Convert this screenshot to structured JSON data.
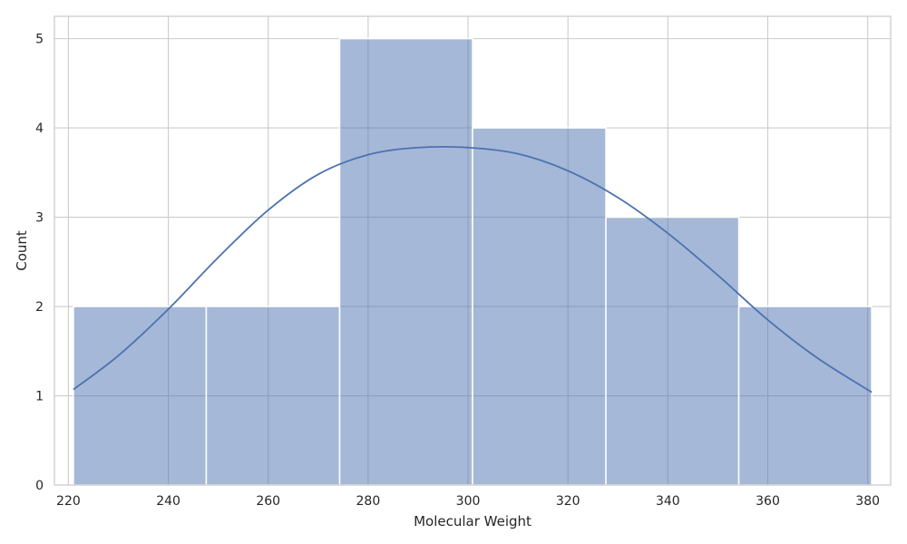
{
  "chart_data": {
    "type": "bar",
    "subtype": "histogram-with-kde",
    "title": "",
    "xlabel": "Molecular Weight",
    "ylabel": "Count",
    "xlim": [
      217.2,
      384.6
    ],
    "ylim": [
      0,
      5.25
    ],
    "x_ticks": [
      220,
      240,
      260,
      280,
      300,
      320,
      340,
      360,
      380
    ],
    "y_ticks": [
      0,
      1,
      2,
      3,
      4,
      5
    ],
    "grid": true,
    "style": "whitegrid",
    "bins": [
      {
        "start": 221.0,
        "end": 247.6,
        "count": 2
      },
      {
        "start": 247.6,
        "end": 274.3,
        "count": 2
      },
      {
        "start": 274.3,
        "end": 300.9,
        "count": 5
      },
      {
        "start": 300.9,
        "end": 327.6,
        "count": 4
      },
      {
        "start": 327.6,
        "end": 354.2,
        "count": 3
      },
      {
        "start": 354.2,
        "end": 380.8,
        "count": 2
      }
    ],
    "kde": {
      "x": [
        221,
        230,
        240,
        250,
        260,
        270,
        280,
        290,
        300,
        310,
        320,
        330,
        340,
        350,
        360,
        370,
        380.8
      ],
      "y": [
        1.07,
        1.45,
        1.97,
        2.55,
        3.08,
        3.48,
        3.7,
        3.78,
        3.78,
        3.71,
        3.52,
        3.22,
        2.82,
        2.35,
        1.85,
        1.42,
        1.04
      ]
    },
    "colors": {
      "bar_fill": "#4c72b0",
      "bar_opacity": 0.5,
      "kde_line": "#4c72b0",
      "grid": "#cccccc",
      "frame": "#cccccc",
      "text": "#262626"
    }
  }
}
